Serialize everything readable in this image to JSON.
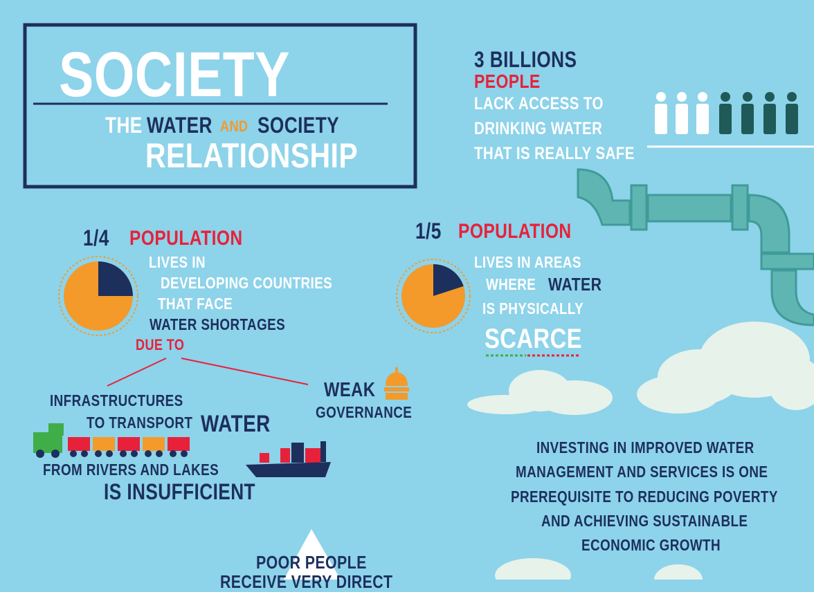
{
  "header": {
    "title": "SOCIETY",
    "subtitle": {
      "the": "THE",
      "water": "WATER",
      "and": "AND",
      "society": "SOCIETY",
      "relationship": "RELATIONSHIP"
    }
  },
  "billions": {
    "amount": "3 BILLIONS",
    "people": "PEOPLE",
    "lines": [
      "LACK ACCESS TO",
      "DRINKING WATER",
      "THAT IS REALLY SAFE"
    ]
  },
  "quarter": {
    "fraction": "1/4",
    "label": "POPULATION",
    "lines": [
      "LIVES IN",
      "DEVELOPING COUNTRIES",
      "THAT FACE",
      "WATER SHORTAGES"
    ],
    "due_to": "DUE TO"
  },
  "infrastructure": {
    "lines": [
      "INFRASTRUCTURES",
      "TO TRANSPORT",
      "WATER",
      "FROM RIVERS AND LAKES",
      "IS INSUFFICIENT"
    ]
  },
  "governance": {
    "lines": [
      "WEAK",
      "GOVERNANCE"
    ]
  },
  "fifth": {
    "fraction": "1/5",
    "label": "POPULATION",
    "lines": [
      "LIVES IN AREAS",
      "WHERE",
      "WATER",
      "IS PHYSICALLY",
      "SCARCE"
    ]
  },
  "investing": {
    "lines": [
      "INVESTING IN IMPROVED WATER",
      "MANAGEMENT AND SERVICES IS ONE",
      "PREREQUISITE TO REDUCING POVERTY",
      "AND ACHIEVING SUSTAINABLE",
      "ECONOMIC GROWTH"
    ]
  },
  "poor": {
    "lines": [
      "POOR PEOPLE",
      "RECEIVE VERY DIRECT"
    ]
  }
}
